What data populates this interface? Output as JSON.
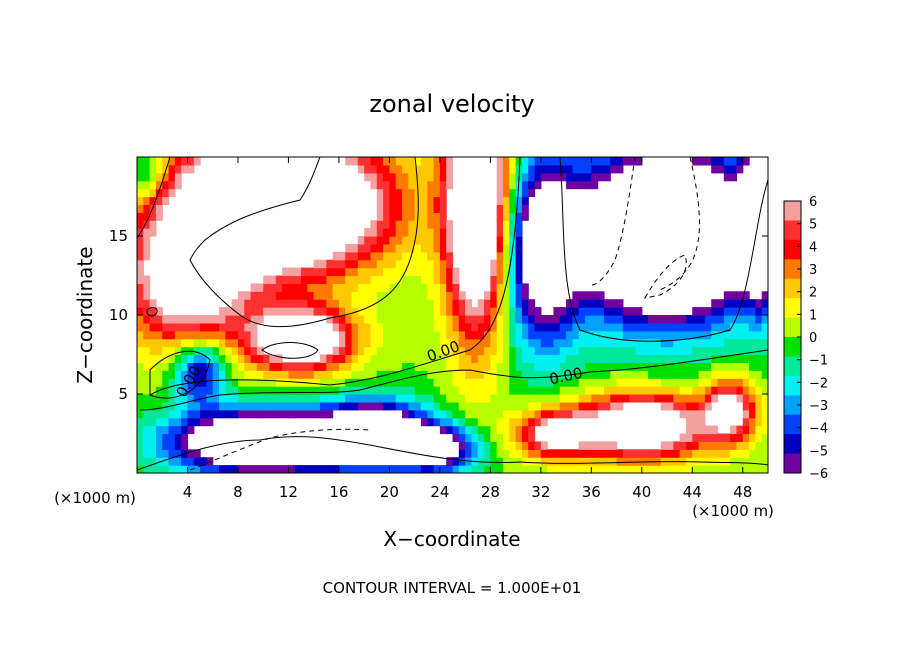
{
  "chart_data": {
    "type": "heatmap",
    "title": "zonal velocity",
    "xlabel": "X−coordinate",
    "ylabel": "Z−coordinate",
    "x_unit_label": "(×1000 m)",
    "y_unit_label": "(×1000 m)",
    "footer": "CONTOUR INTERVAL = 1.000E+01",
    "xlim": [
      0,
      50
    ],
    "ylim": [
      0,
      20
    ],
    "xticks": [
      4,
      8,
      12,
      16,
      20,
      24,
      28,
      32,
      36,
      40,
      44,
      48
    ],
    "yticks": [
      5,
      10,
      15
    ],
    "colorbar": {
      "range": [
        -6,
        6
      ],
      "ticks": [
        6,
        5,
        4,
        3,
        2,
        1,
        0,
        -1,
        -2,
        -3,
        -4,
        -5,
        -6
      ],
      "tick_labels": [
        "6",
        "5",
        "4",
        "3",
        "2",
        "1",
        "0",
        "−1",
        "−2",
        "−3",
        "−4",
        "−5",
        "−6"
      ],
      "colors": [
        "#f4a0a0",
        "#ff3030",
        "#ff0000",
        "#ff7a00",
        "#ffc800",
        "#ffff00",
        "#b4ff00",
        "#00e000",
        "#00e89a",
        "#00f0f0",
        "#00a0ff",
        "#0040ff",
        "#0000c0",
        "#7000a0"
      ]
    },
    "contour_labels": [
      "0.00",
      "0.00",
      "0.00"
    ],
    "field_note_sources": [
      {
        "x": 4,
        "z": 12,
        "u": 8,
        "sx": 5,
        "sz": 4
      },
      {
        "x": 11,
        "z": 17,
        "u": 16,
        "sx": 8,
        "sz": 4
      },
      {
        "x": 13,
        "z": 8.5,
        "u": 10,
        "sx": 4,
        "sz": 2
      },
      {
        "x": 27,
        "z": 17,
        "u": 12,
        "sx": 2.5,
        "sz": 8
      },
      {
        "x": 5,
        "z": 6.5,
        "u": -6,
        "sx": 2,
        "sz": 2
      },
      {
        "x": 33,
        "z": 2.5,
        "u": 7,
        "sx": 3,
        "sz": 1.5
      },
      {
        "x": 40,
        "z": 3,
        "u": 10,
        "sx": 5,
        "sz": 2
      },
      {
        "x": 47,
        "z": 4,
        "u": 7,
        "sx": 2,
        "sz": 2
      },
      {
        "x": 42,
        "z": 15,
        "u": -16,
        "sx": 7,
        "sz": 5
      },
      {
        "x": 10,
        "z": 2,
        "u": -12,
        "sx": 7,
        "sz": 2
      },
      {
        "x": 19,
        "z": 2.5,
        "u": -10,
        "sx": 4,
        "sz": 2
      },
      {
        "x": 24,
        "z": 1.5,
        "u": -7,
        "sx": 3,
        "sz": 1.5
      },
      {
        "x": 32,
        "z": 14,
        "u": -8,
        "sx": 3,
        "sz": 6
      },
      {
        "x": 49.5,
        "z": 16,
        "u": -8,
        "sx": 1.5,
        "sz": 5
      },
      {
        "x": 0.5,
        "z": 19,
        "u": -3,
        "sx": 2,
        "sz": 2
      }
    ]
  }
}
